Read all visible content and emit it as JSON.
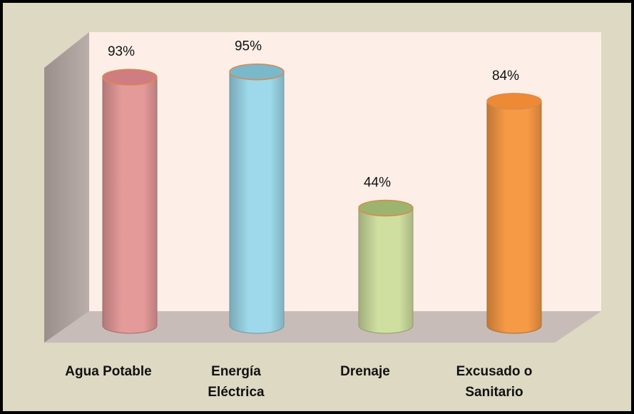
{
  "chart_data": {
    "type": "bar",
    "title": "",
    "xlabel": "",
    "ylabel": "",
    "ylim": [
      0,
      100
    ],
    "categories": [
      [
        "Agua Potable"
      ],
      [
        "Energía",
        "Eléctrica"
      ],
      [
        "Drenaje"
      ],
      [
        "Excusado o",
        "Sanitario"
      ]
    ],
    "values": [
      93,
      95,
      44,
      84
    ],
    "value_labels": [
      "93%",
      "95%",
      "44%",
      "84%"
    ],
    "colors": [
      "#e59a9a",
      "#9dd9ea",
      "#cfdfa0",
      "#f79a45"
    ],
    "top_colors": [
      "#cf7d80",
      "#7ab8cc",
      "#9cb46e",
      "#ee8a35"
    ],
    "grid": false,
    "legend": "none",
    "style": "3d-cylinder",
    "wall_color": "#fdeee7",
    "floor_color": "#c8bcb8",
    "frame_color": "#ddd9c3"
  }
}
